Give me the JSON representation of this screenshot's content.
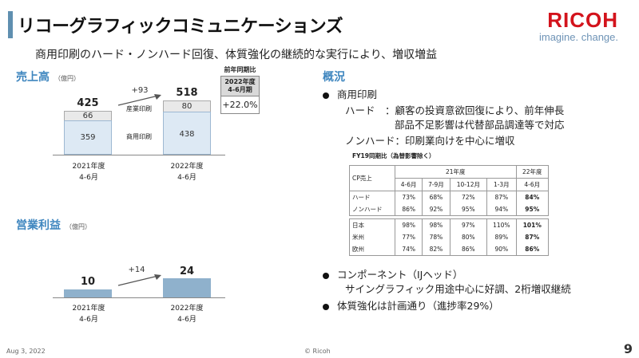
{
  "title": "リコーグラフィックコミュニケーションズ",
  "subtitle": "商用印刷のハード・ノンハード回復、体質強化の継続的な実行により、増収増益",
  "logo": {
    "brand": "RICOH",
    "tagline": "imagine. change."
  },
  "sales": {
    "title": "売上高",
    "unit": "（億円）",
    "bars": [
      {
        "year": "2021年度",
        "period": "4-6月",
        "total": "425",
        "industrial": "66",
        "commercial": "359"
      },
      {
        "year": "2022年度",
        "period": "4-6月",
        "total": "518",
        "industrial": "80",
        "commercial": "438"
      }
    ],
    "legend_industrial": "産業印刷",
    "legend_commercial": "商用印刷",
    "delta": "+93",
    "yoy_header": "前年同期比",
    "yoy_period": "2022年度\n4-6月期",
    "yoy_value": "+22.0%"
  },
  "profit": {
    "title": "営業利益",
    "unit": "（億円）",
    "bars": [
      {
        "year": "2021年度",
        "period": "4-6月",
        "value": "10"
      },
      {
        "year": "2022年度",
        "period": "4-6月",
        "value": "24"
      }
    ],
    "delta": "+14"
  },
  "overview": {
    "title": "概況",
    "b1": "商用印刷",
    "hard_label": "ハード",
    "hard_text1": "：顧客の投資意欲回復により、前年伸長",
    "hard_text2": "部品不足影響は代替部品調達等で対応",
    "nonhard_text": "ノンハード：印刷業向けを中心に増収",
    "table_title": "FY19同期比（為替影響除く）",
    "table": {
      "h_cp": "CP売上",
      "h_fy21": "21年度",
      "h_fy22": "22年度",
      "cols": [
        "4-6月",
        "7-9月",
        "10-12月",
        "1-3月",
        "4-6月"
      ],
      "rows1": [
        {
          "label": "ハード",
          "v": [
            "73%",
            "68%",
            "72%",
            "87%",
            "84%"
          ]
        },
        {
          "label": "ノンハード",
          "v": [
            "86%",
            "92%",
            "95%",
            "94%",
            "95%"
          ]
        }
      ],
      "rows2": [
        {
          "label": "日本",
          "v": [
            "98%",
            "98%",
            "97%",
            "110%",
            "101%"
          ]
        },
        {
          "label": "米州",
          "v": [
            "77%",
            "78%",
            "80%",
            "89%",
            "87%"
          ]
        },
        {
          "label": "欧州",
          "v": [
            "74%",
            "82%",
            "86%",
            "90%",
            "86%"
          ]
        }
      ]
    },
    "b2": "コンポーネント（IJヘッド）",
    "b2_sub": "サイングラフィック用途中心に好調、2桁増収継続",
    "b3": "体質強化は計画通り（進捗率29%）"
  },
  "footer": {
    "date": "Aug 3, 2022",
    "copyright": "© Ricoh",
    "page": "9"
  }
}
